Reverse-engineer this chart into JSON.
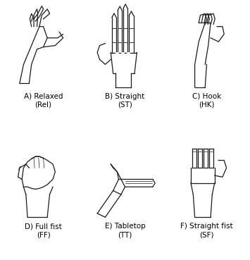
{
  "figsize": [
    3.55,
    3.69
  ],
  "dpi": 100,
  "background_color": "#ffffff",
  "labels_row1": [
    "A) Relaxed\n(Rel)",
    "B) Straight\n(ST)",
    "C) Hook\n(HK)"
  ],
  "labels_row2": [
    "D) Full fist\n(FF)",
    "E) Tabletop\n(TT)",
    "F) Straight fist\n(SF)"
  ],
  "label_fontsize": 7.5,
  "grid_rows": 2,
  "grid_cols": 3
}
